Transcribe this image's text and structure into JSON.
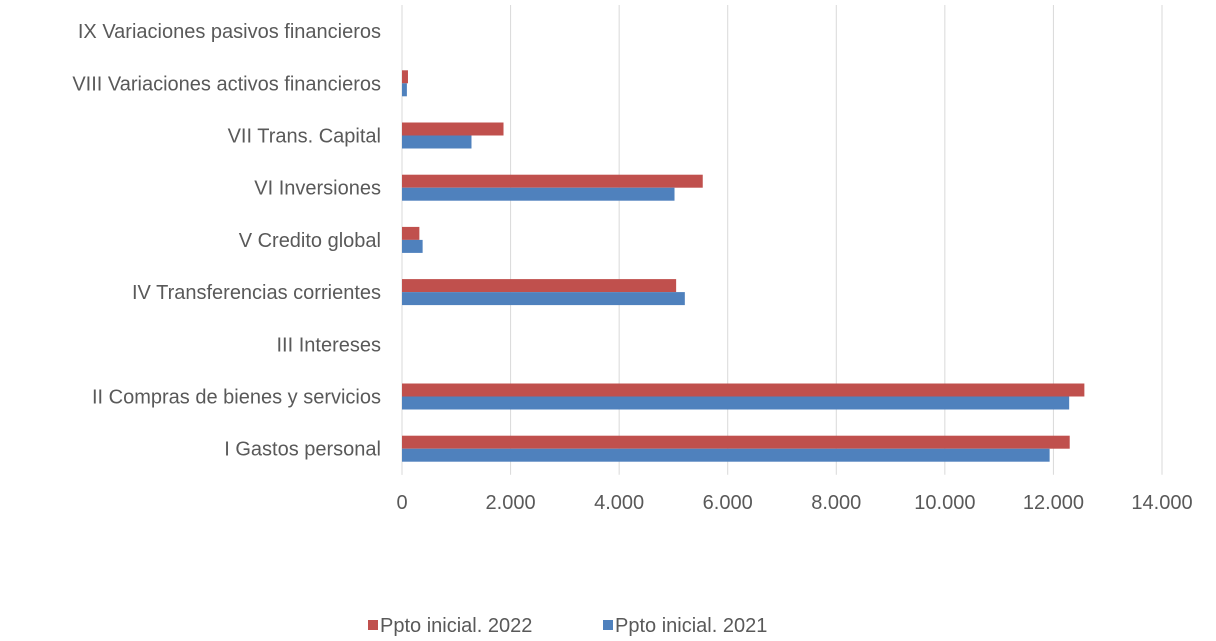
{
  "chart_data": {
    "type": "bar",
    "orientation": "horizontal",
    "categories": [
      "I Gastos personal",
      "II Compras de bienes y servicios",
      "III Intereses",
      "IV Transferencias corrientes",
      "V Credito global",
      "VI Inversiones",
      "VII Trans. Capital",
      "VIII Variaciones activos financieros",
      "IX Variaciones pasivos financieros"
    ],
    "series": [
      {
        "name": "Ppto inicial. 2022",
        "color": "#C0504D",
        "values": [
          12300,
          12570,
          0,
          5050,
          320,
          5540,
          1870,
          110,
          0
        ]
      },
      {
        "name": "Ppto inicial. 2021",
        "color": "#4F81BD",
        "values": [
          11930,
          12290,
          0,
          5210,
          380,
          5020,
          1280,
          90,
          0
        ]
      }
    ],
    "xlim": [
      0,
      14000
    ],
    "xticks": [
      0,
      2000,
      4000,
      6000,
      8000,
      10000,
      12000,
      14000
    ],
    "xtick_labels": [
      "0",
      "2.000",
      "4.000",
      "6.000",
      "8.000",
      "10.000",
      "12.000",
      "14.000"
    ],
    "grid": true,
    "legend_position": "bottom"
  }
}
